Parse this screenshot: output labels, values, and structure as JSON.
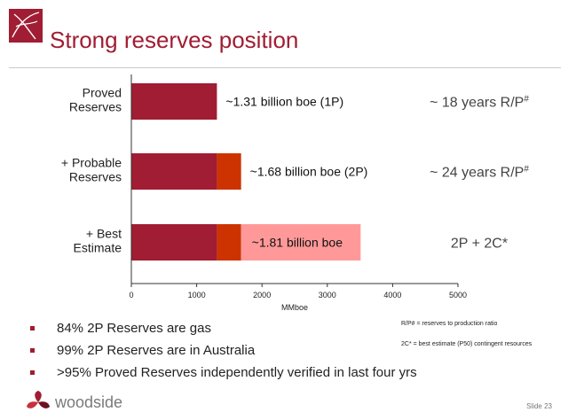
{
  "slide": {
    "title": "Strong reserves position",
    "brand_color": "#a01d33",
    "brand_name": "woodside",
    "slide_number": "Slide 23"
  },
  "chart_data": {
    "type": "bar",
    "orientation": "horizontal",
    "stacked": true,
    "categories": [
      [
        "Proved",
        "Reserves"
      ],
      [
        "+ Probable",
        "Reserves"
      ],
      [
        "+ Best",
        "Estimate"
      ]
    ],
    "series": [
      {
        "name": "Proved (1P)",
        "color": "#a01d33",
        "values": [
          1310,
          1310,
          1310
        ]
      },
      {
        "name": "Probable",
        "color": "#cc3300",
        "values": [
          0,
          370,
          370
        ]
      },
      {
        "name": "Best estimate contingent resources (2C)",
        "color": "#ff9999",
        "values": [
          0,
          0,
          1830
        ]
      }
    ],
    "bar_labels": [
      "~1.31 billion boe (1P)",
      "~1.68 billion boe (2P)",
      "~1.81 billion boe"
    ],
    "right_labels": [
      {
        "text": "~ 18 years R/P",
        "sup": "#"
      },
      {
        "text": "~ 24 years R/P",
        "sup": "#"
      },
      {
        "text": "2P + 2C*",
        "sup": ""
      }
    ],
    "xlabel": "MMboe",
    "xlim": [
      0,
      5000
    ],
    "xticks": [
      0,
      1000,
      2000,
      3000,
      4000,
      5000
    ],
    "grid": false,
    "legend": "none"
  },
  "bullets": [
    "84% 2P Reserves are gas",
    "99% 2P Reserves are in Australia",
    ">95% Proved Reserves independently verified in last four yrs"
  ],
  "notes": [
    "R/P# = reserves to production ratio",
    "2C* = best estimate (P50) contingent resources"
  ]
}
